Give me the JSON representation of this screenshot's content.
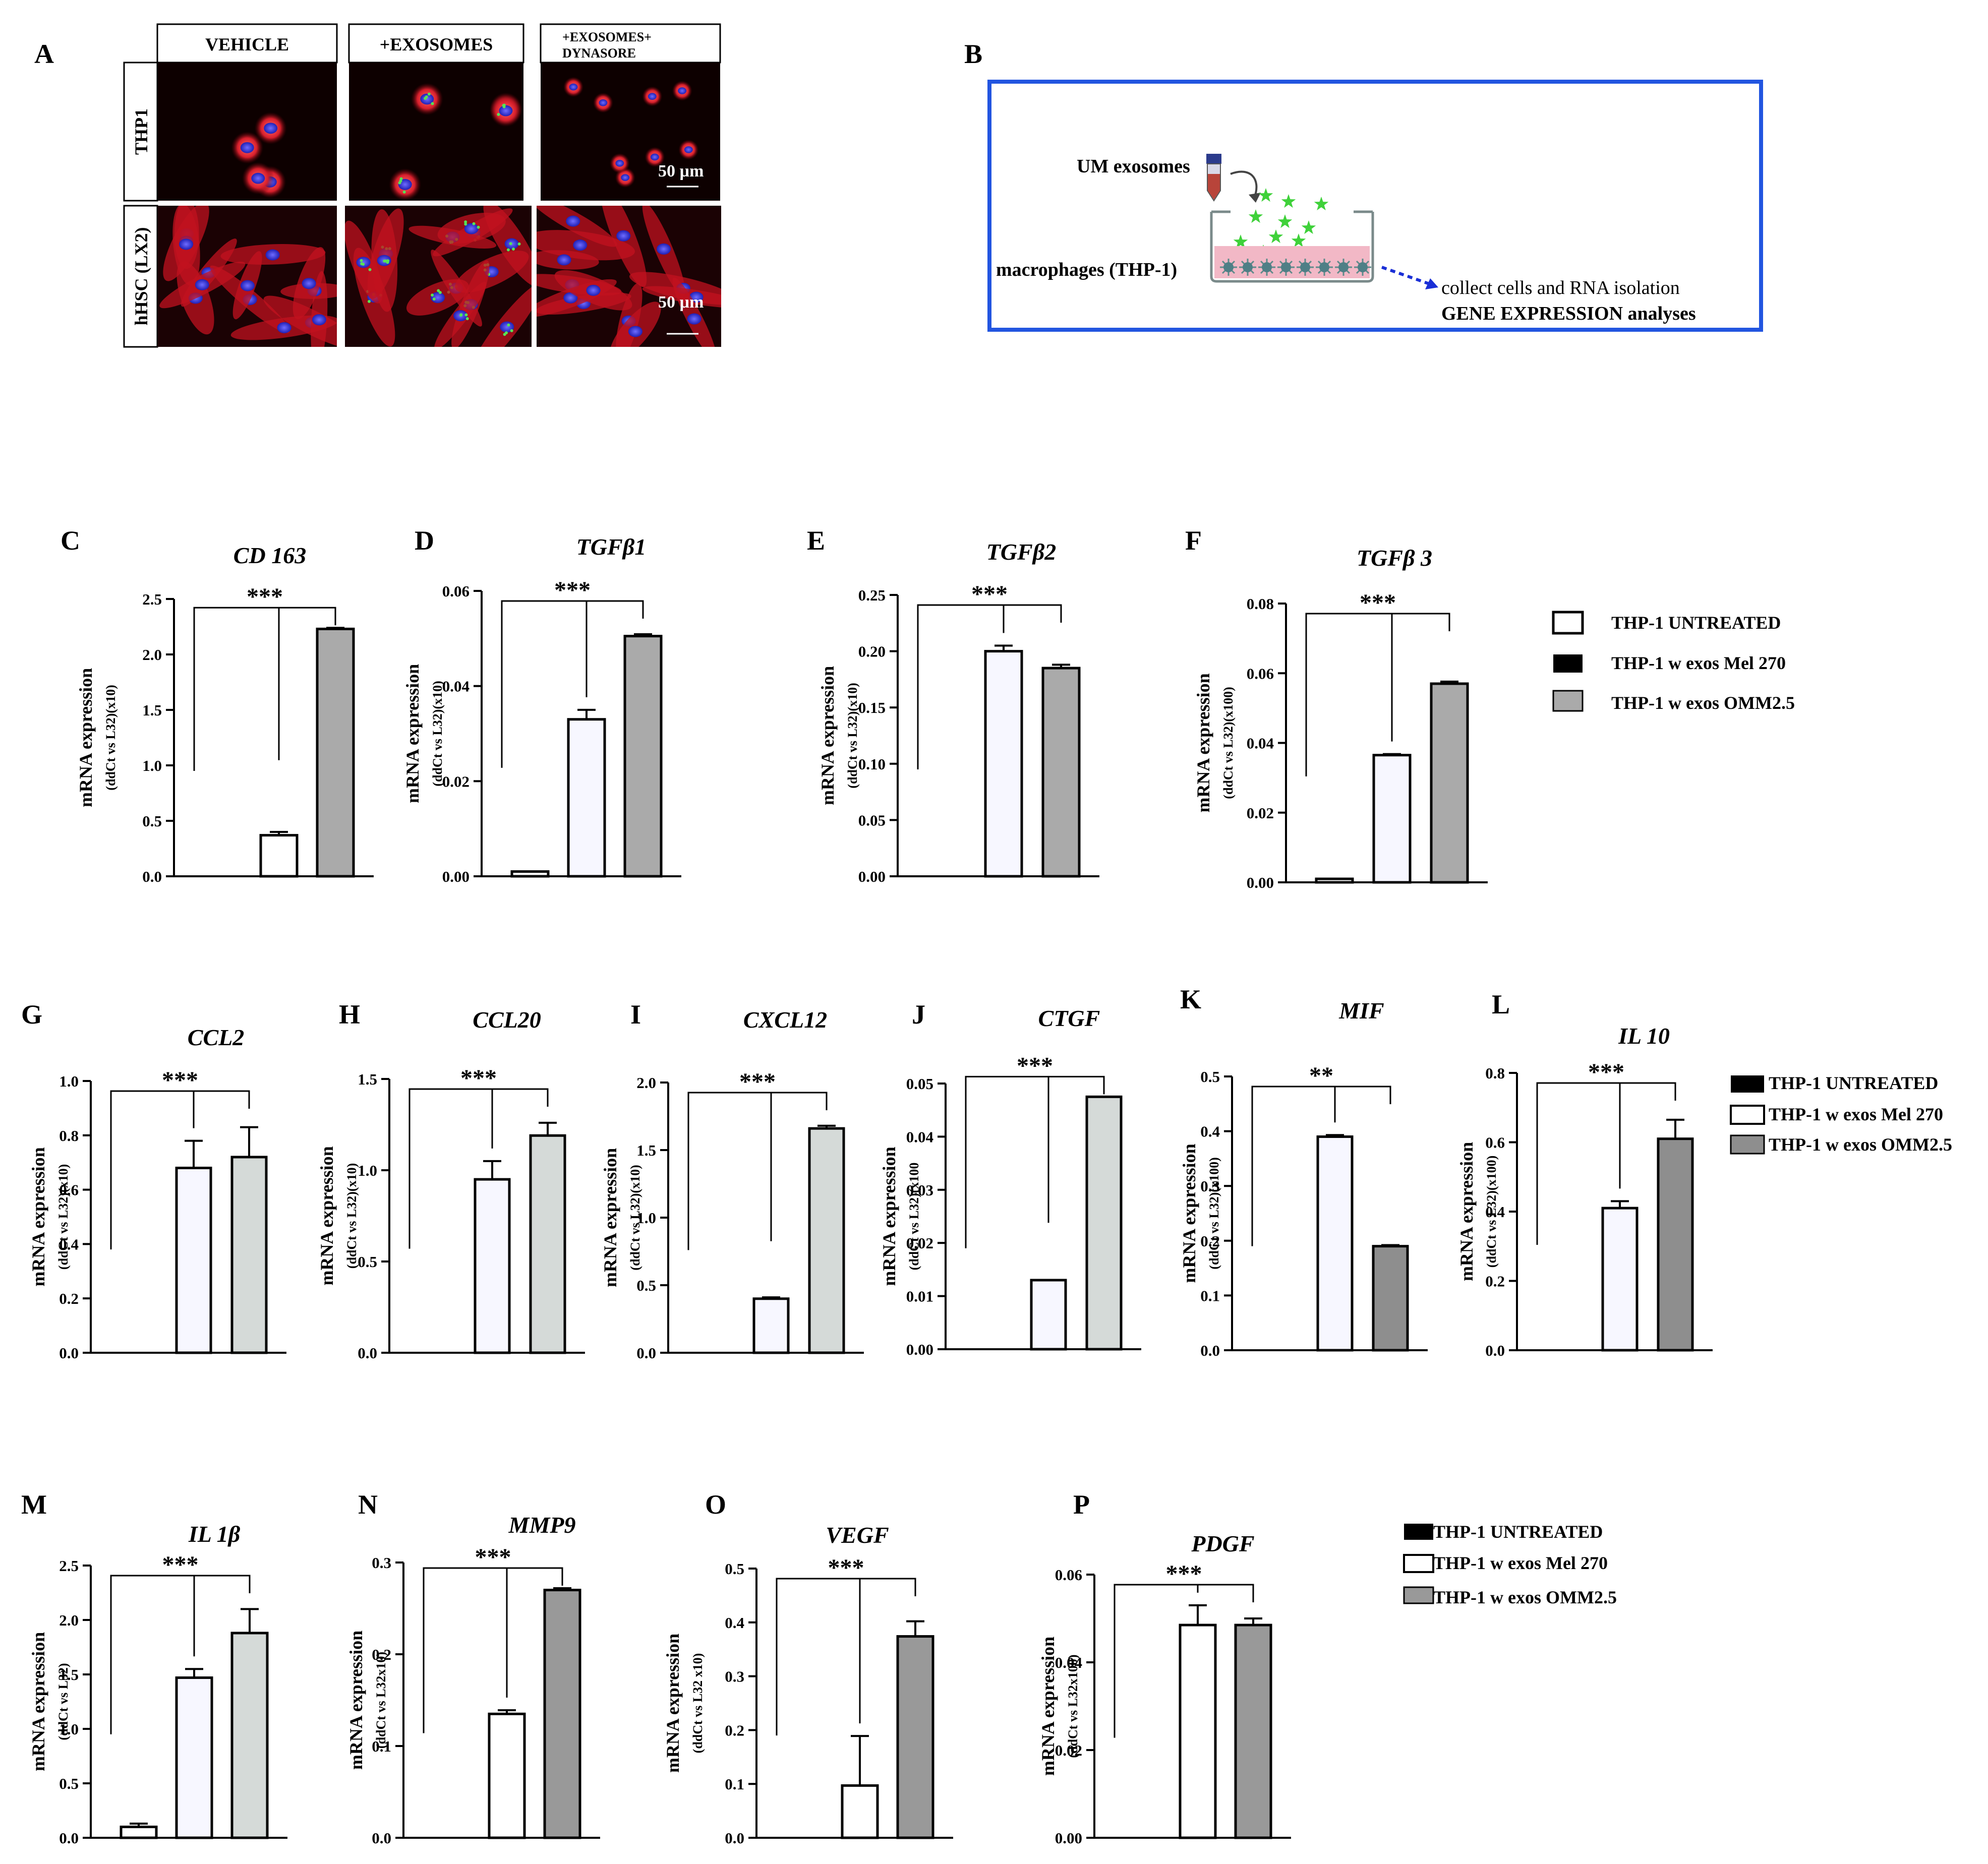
{
  "panel_a": {
    "label": "A",
    "columns": [
      "VEHICLE",
      "+EXOSOMES",
      "+EXOSOMES+",
      "DYNASORE"
    ],
    "rows": [
      "THP1",
      "hHSC  (LX2)"
    ],
    "scale_bar": "50 µm"
  },
  "panel_b": {
    "label": "B",
    "exosomes": "UM exosomes",
    "macrophages": "macrophages (THP-1)",
    "collect": "collect cells  and RNA  isolation",
    "analysis": "GENE EXPRESSION analyses",
    "colors": {
      "border": "#2255e0",
      "arrow": "#1a2fd6",
      "exosome": "#3fd13a",
      "medium": "#f2b8c6"
    }
  },
  "legends": [
    {
      "entries": [
        "THP-1 UNTREATED",
        "THP-1 w exos Mel 270",
        "THP-1 w exos OMM2.5"
      ]
    },
    {
      "entries": [
        "THP-1 UNTREATED",
        "THP-1 w exos Mel 270",
        "THP-1 w exos OMM2.5"
      ]
    },
    {
      "entries": [
        "THP-1 UNTREATED",
        "THP-1 w exos Mel 270",
        "THP-1 w exos OMM2.5"
      ]
    }
  ],
  "chart_data": [
    {
      "type": "bar",
      "label": "C",
      "title": "CD 163",
      "ylabel": "mRNA  expression",
      "ylabel2": "(ddCt vs L32)(x10)",
      "ylim": [
        0,
        2.5
      ],
      "ticks": [
        "0.0",
        "0.5",
        "1.0",
        "1.5",
        "2.0",
        "2.5"
      ],
      "values": [
        0,
        0.37,
        2.23
      ],
      "errors": [
        0,
        0.03,
        0.01
      ],
      "fills": [
        "#ffffff",
        "#ffffff",
        "#aaaaaa"
      ],
      "significance": "***"
    },
    {
      "type": "bar",
      "label": "D",
      "title": "TGFβ1",
      "ylabel": "mRNA  expression",
      "ylabel2": "(ddCt vs L32)(x10)",
      "ylim": [
        0,
        0.06
      ],
      "ticks": [
        "0.00",
        "0.02",
        "0.04",
        "0.06"
      ],
      "values": [
        0.001,
        0.033,
        0.0505
      ],
      "errors": [
        0,
        0.002,
        0.0004
      ],
      "fills": [
        "#ffffff",
        "#f7f7ff",
        "#aaaaaa"
      ],
      "significance": "***"
    },
    {
      "type": "bar",
      "label": "E",
      "title": "TGFβ2",
      "ylabel": "mRNA  expression",
      "ylabel2": "(ddCt vs L32)(x10)",
      "ylim": [
        0,
        0.25
      ],
      "ticks": [
        "0.00",
        "0.05",
        "0.10",
        "0.15",
        "0.20",
        "0.25"
      ],
      "values": [
        0,
        0.2,
        0.185
      ],
      "errors": [
        0,
        0.005,
        0.003
      ],
      "fills": [
        "#ffffff",
        "#f7f7ff",
        "#aaaaaa"
      ],
      "significance": "***"
    },
    {
      "type": "bar",
      "label": "F",
      "title": "TGFβ 3",
      "ylabel": "mRNA  expression",
      "ylabel2": "(ddCt vs L32)(x100)",
      "ylim": [
        0,
        0.08
      ],
      "ticks": [
        "0.00",
        "0.02",
        "0.04",
        "0.06",
        "0.08"
      ],
      "values": [
        0.001,
        0.0365,
        0.057
      ],
      "errors": [
        0,
        0.0003,
        0.0006
      ],
      "fills": [
        "#ffffff",
        "#f7f7ff",
        "#aaaaaa"
      ],
      "significance": "***"
    },
    {
      "type": "bar",
      "label": "G",
      "title": "CCL2",
      "ylabel": "mRNA  expression",
      "ylabel2": "(ddCt vs L32)(x10)",
      "ylim": [
        0,
        1.0
      ],
      "ticks": [
        "0.0",
        "0.2",
        "0.4",
        "0.6",
        "0.8",
        "1.0"
      ],
      "values": [
        0,
        0.68,
        0.72
      ],
      "errors": [
        0,
        0.1,
        0.11
      ],
      "fills": [
        "#ffffff",
        "#f7f7ff",
        "#d5dad8"
      ],
      "significance": "***"
    },
    {
      "type": "bar",
      "label": "H",
      "title": "CCL20",
      "ylabel": "mRNA  expression",
      "ylabel2": "(ddCt vs L32)(x10)",
      "ylim": [
        0,
        1.5
      ],
      "ticks": [
        "0.0",
        "0.5",
        "1.0",
        "1.5"
      ],
      "values": [
        0,
        0.95,
        1.19
      ],
      "errors": [
        0,
        0.1,
        0.07
      ],
      "fills": [
        "#ffffff",
        "#f7f7ff",
        "#d5dad8"
      ],
      "significance": "***"
    },
    {
      "type": "bar",
      "label": "I",
      "title": "CXCL12",
      "ylabel": "mRNA  expression",
      "ylabel2": "(ddCt vs L32)(x10)",
      "ylim": [
        0,
        2.0
      ],
      "ticks": [
        "0.0",
        "0.5",
        "1.0",
        "1.5",
        "2.0"
      ],
      "values": [
        0,
        0.4,
        1.66
      ],
      "errors": [
        0,
        0.01,
        0.02
      ],
      "fills": [
        "#ffffff",
        "#f7f7ff",
        "#d5dad8"
      ],
      "significance": "***"
    },
    {
      "type": "bar",
      "label": "J",
      "title": "CTGF",
      "ylabel": "mRNA  expression",
      "ylabel2": "(ddCt vs L32)(x100",
      "ylim": [
        0,
        0.05
      ],
      "ticks": [
        "0.00",
        "0.01",
        "0.02",
        "0.03",
        "0.04",
        "0.05"
      ],
      "values": [
        0,
        0.013,
        0.0475
      ],
      "errors": [
        0,
        0,
        0
      ],
      "fills": [
        "#ffffff",
        "#f7f7ff",
        "#d5dad8"
      ],
      "significance": "***"
    },
    {
      "type": "bar",
      "label": "K",
      "title": "MIF",
      "ylabel": "mRNA  expression",
      "ylabel2": "(ddCt vs L32)(x100)",
      "ylim": [
        0,
        0.5
      ],
      "ticks": [
        "0.0",
        "0.1",
        "0.2",
        "0.3",
        "0.4",
        "0.5"
      ],
      "values": [
        0,
        0.39,
        0.19
      ],
      "errors": [
        0,
        0.003,
        0.002
      ],
      "fills": [
        "#ffffff",
        "#f7f7ff",
        "#8e8e8e"
      ],
      "significance": "**"
    },
    {
      "type": "bar",
      "label": "L",
      "title": "IL 10",
      "ylabel": "mRNA  expression",
      "ylabel2": "(ddCt vs L32)(x100)",
      "ylim": [
        0,
        0.8
      ],
      "ticks": [
        "0.0",
        "0.2",
        "0.4",
        "0.6",
        "0.8"
      ],
      "values": [
        0,
        0.41,
        0.61
      ],
      "errors": [
        0,
        0.02,
        0.055
      ],
      "fills": [
        "#ffffff",
        "#f7f7ff",
        "#8e8e8e"
      ],
      "significance": "***"
    },
    {
      "type": "bar",
      "label": "M",
      "title": "IL 1β",
      "ylabel": "mRNA  expression",
      "ylabel2": "(ddCt vs L32)",
      "ylim": [
        0,
        2.5
      ],
      "ticks": [
        "0.0",
        "0.5",
        "1.0",
        "1.5",
        "2.0",
        "2.5"
      ],
      "values": [
        0.1,
        1.47,
        1.88
      ],
      "errors": [
        0.03,
        0.08,
        0.22
      ],
      "fills": [
        "#ffffff",
        "#f7f7ff",
        "#d5dad8"
      ],
      "significance": "***"
    },
    {
      "type": "bar",
      "label": "N",
      "title": "MMP9",
      "ylabel": "mRNA  expression",
      "ylabel2": "(ddCt vs L32x10)",
      "ylim": [
        0,
        0.3
      ],
      "ticks": [
        "0.0",
        "0.1",
        "0.2",
        "0.3"
      ],
      "values": [
        0,
        0.135,
        0.27
      ],
      "errors": [
        0,
        0.004,
        0.002
      ],
      "fills": [
        "#ffffff",
        "#ffffff",
        "#999999"
      ],
      "significance": "***"
    },
    {
      "type": "bar",
      "label": "O",
      "title": "VEGF",
      "ylabel": "mRNA  expression",
      "ylabel2": "(ddCt vs L32 x10)",
      "ylim": [
        0,
        0.5
      ],
      "ticks": [
        "0.0",
        "0.1",
        "0.2",
        "0.3",
        "0.4",
        "0.5"
      ],
      "values": [
        0,
        0.097,
        0.374
      ],
      "errors": [
        0,
        0.092,
        0.028
      ],
      "fills": [
        "#ffffff",
        "#ffffff",
        "#999999"
      ],
      "significance": "***"
    },
    {
      "type": "bar",
      "label": "P",
      "title": "PDGF",
      "ylabel": "mRNA expression",
      "ylabel2": "(ddCt vs L32x100)",
      "ylim": [
        0,
        0.06
      ],
      "ticks": [
        "0.00",
        "0.02",
        "0.04",
        "0.06"
      ],
      "values": [
        0,
        0.0485,
        0.0485
      ],
      "errors": [
        0,
        0.0045,
        0.0015
      ],
      "fills": [
        "#ffffff",
        "#ffffff",
        "#999999"
      ],
      "significance": "***"
    }
  ]
}
